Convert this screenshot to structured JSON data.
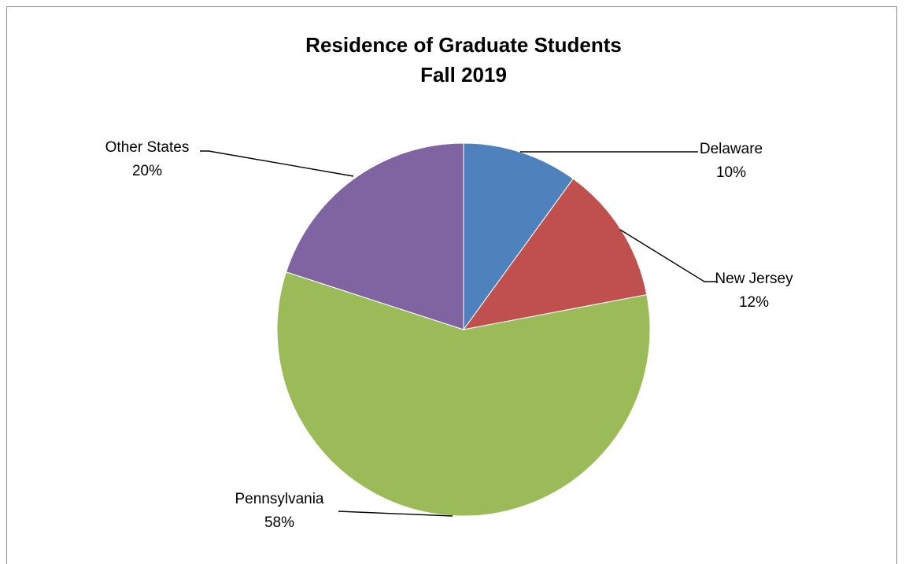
{
  "chart_data": {
    "type": "pie",
    "title": "Residence of Graduate Students",
    "subtitle": "Fall 2019",
    "categories": [
      "Delaware",
      "New Jersey",
      "Pennsylvania",
      "Other States"
    ],
    "values": [
      10,
      12,
      58,
      20
    ],
    "value_labels": [
      "10%",
      "12%",
      "58%",
      "20%"
    ],
    "colors": [
      "#4F81BD",
      "#C0504D",
      "#9BBB59",
      "#8064A2"
    ],
    "start_angle_deg": 0,
    "direction": "clockwise",
    "legend": "none",
    "data_labels": "outside with leader lines"
  }
}
